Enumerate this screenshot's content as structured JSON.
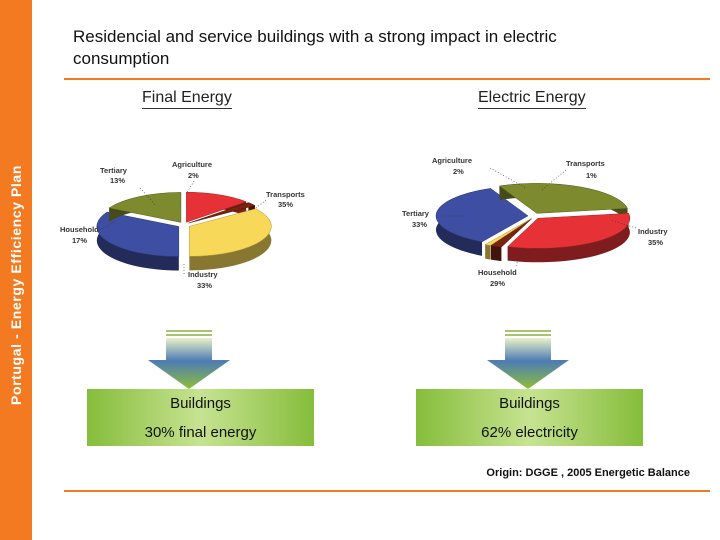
{
  "sidebar": {
    "label": "Portugal - Energy Efficiency Plan"
  },
  "header": {
    "title": "Residencial and service buildings with a strong impact in electric consumption"
  },
  "chart_data": [
    {
      "type": "pie",
      "title": "Final Energy",
      "categories": [
        "Industry",
        "Household",
        "Tertiary",
        "Agriculture",
        "Transports"
      ],
      "values": [
        33,
        17,
        13,
        2,
        35
      ],
      "labels": [
        {
          "name": "Tertiary",
          "value": "13%"
        },
        {
          "name": "Agriculture",
          "value": "2%"
        },
        {
          "name": "Transports",
          "value": "35%"
        },
        {
          "name": "Household",
          "value": "17%"
        },
        {
          "name": "Industry",
          "value": "33%"
        }
      ],
      "colors": [
        "#3e4fa3",
        "#7d8a2e",
        "#e63236",
        "#7a2410",
        "#f7d858"
      ],
      "style": "3d-exploded"
    },
    {
      "type": "pie",
      "title": "Electric Energy",
      "categories": [
        "Industry",
        "Household",
        "Tertiary",
        "Agriculture",
        "Transports"
      ],
      "values": [
        35,
        29,
        33,
        2,
        1
      ],
      "labels": [
        {
          "name": "Agriculture",
          "value": "2%"
        },
        {
          "name": "Transports",
          "value": "1%"
        },
        {
          "name": "Tertiary",
          "value": "33%"
        },
        {
          "name": "Industry",
          "value": "35%"
        },
        {
          "name": "Household",
          "value": "29%"
        }
      ],
      "colors": [
        "#3e4fa3",
        "#7d8a2e",
        "#e63236",
        "#7a2410",
        "#f7d858"
      ],
      "style": "3d-exploded"
    }
  ],
  "boxes": [
    {
      "line1": "Buildings",
      "line2": "30% final energy"
    },
    {
      "line1": "Buildings",
      "line2": "62% electricity"
    }
  ],
  "footer": {
    "origin": "Origin: DGGE , 2005  Energetic Balance"
  }
}
